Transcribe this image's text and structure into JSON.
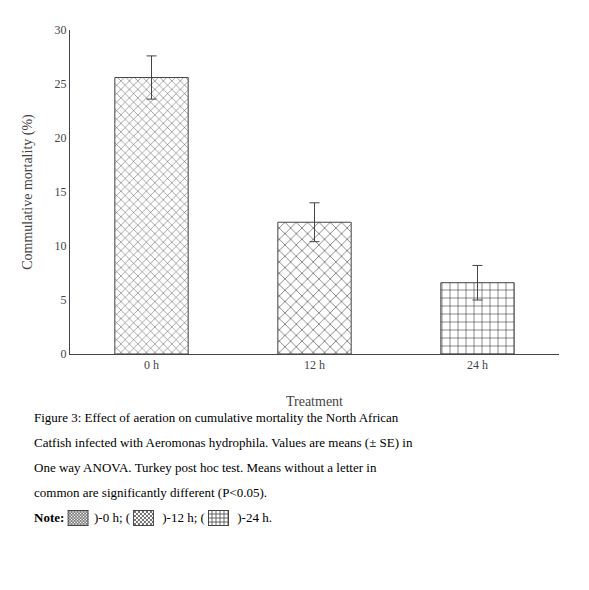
{
  "chart_data": {
    "type": "bar",
    "categories": [
      "0 h",
      "12 h",
      "24 h"
    ],
    "values": [
      25.6,
      12.2,
      6.6
    ],
    "errors": [
      2.0,
      1.8,
      1.6
    ],
    "xlabel": "Treatment",
    "ylabel": "Commulative mortality (%)",
    "ylim": [
      0,
      30
    ],
    "yticks": [
      0,
      5,
      10,
      15,
      20,
      25,
      30
    ],
    "grid": false,
    "annotations": [
      "Figure 3: Effect of aeration on cumulative mortality the North African",
      "Catfish infected with Aeromonas hydrophila. Values are means (± SE) in",
      "One way ANOVA. Turkey post hoc test. Means without a letter in",
      "common are significantly different (P<0.05).",
      [
        "Note: ",
        ")-0 h; ( ",
        " )-12 h; ( ",
        " )-24 h."
      ]
    ]
  }
}
